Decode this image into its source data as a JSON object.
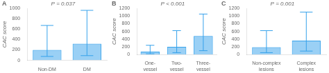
{
  "chart_data": [
    {
      "type": "bar",
      "title": "A",
      "annotation": "P = 0.037",
      "y_label": "CAC score",
      "categories": [
        "Non-DM",
        "DM"
      ],
      "values": [
        200,
        320
      ],
      "error_low": [
        75,
        90
      ],
      "error_high": [
        670,
        960
      ],
      "ylim": [
        0,
        1000
      ],
      "yticks": [
        0,
        200,
        400,
        600,
        800,
        1000
      ],
      "grid": false
    },
    {
      "type": "bar",
      "title": "B",
      "annotation": "P < 0.001",
      "y_label": "CAC score",
      "categories": [
        "One-\nvessel",
        "Two-\nvessel",
        "Three-\nvessel"
      ],
      "values": [
        75,
        200,
        480
      ],
      "error_low": [
        20,
        50,
        100
      ],
      "error_high": [
        240,
        620,
        1050
      ],
      "ylim": [
        0,
        1200
      ],
      "yticks": [
        0,
        200,
        400,
        600,
        800,
        1000,
        1200
      ],
      "grid": false
    },
    {
      "type": "bar",
      "title": "C",
      "annotation": "P = 0.001",
      "y_label": "CAC score",
      "categories": [
        "Non-complex\nlesions",
        "Complex\nlesions"
      ],
      "values": [
        190,
        360
      ],
      "error_low": [
        50,
        90
      ],
      "error_high": [
        620,
        1100
      ],
      "ylim": [
        0,
        1200
      ],
      "yticks": [
        0,
        200,
        400,
        600,
        800,
        1000,
        1200
      ],
      "grid": false
    }
  ]
}
